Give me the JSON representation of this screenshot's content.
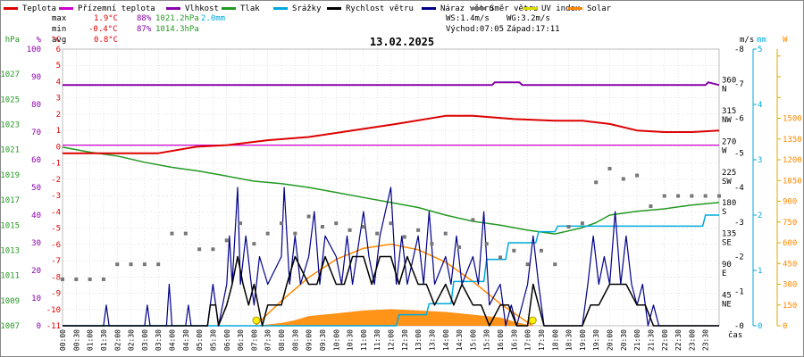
{
  "legend": [
    {
      "label": "Teplota",
      "color": "#dd0000"
    },
    {
      "label": "Přízemní teplota",
      "color": "#cc00cc"
    },
    {
      "label": "Vlhkost",
      "color": "#8800aa"
    },
    {
      "label": "Tlak",
      "color": "#229922"
    },
    {
      "label": "Srážky",
      "color": "#00aadd"
    },
    {
      "label": "Rychlost větru",
      "color": "#000000"
    },
    {
      "label": "Náraz větru",
      "color": "#000088"
    },
    {
      "label": "Směr větru",
      "color": "#777777"
    },
    {
      "label": "UV index",
      "color": "#dddd00"
    },
    {
      "label": "Solar",
      "color": "#ff8800"
    }
  ],
  "stats": {
    "max": {
      "label": "max",
      "temp": "1.9°C",
      "hum": "88%",
      "press": "1021.2hPa",
      "rain": "2.0mm"
    },
    "min": {
      "label": "min",
      "temp": "-0.4°C",
      "hum": "87%",
      "press": "1014.3hPa"
    },
    "avg": {
      "label": "avg",
      "temp": "0.8°C"
    }
  },
  "wind_info": {
    "ws": "WS:1.4m/s",
    "wg": "WG:3.2m/s",
    "sunrise": "Východ:07:05",
    "sunset": "Západ:17:11"
  },
  "title": "13.02.2025",
  "axis_units": {
    "hpa": "hPa",
    "pct": "%",
    "celsius": "°C",
    "ms": "m/s",
    "mm": "mm",
    "w": "W",
    "time": "čas"
  },
  "colors": {
    "hpa": "#229922",
    "pct": "#8800aa",
    "celsius": "#dd0000",
    "ms": "#000000",
    "mm": "#00aadd",
    "w": "#ff8800",
    "grid": "#c8c8c8"
  },
  "chart_data": {
    "type": "line",
    "x_unit": "time of day (hours)",
    "xlim": [
      0,
      24
    ],
    "x_tick_labels": [
      "00:00",
      "00:30",
      "01:00",
      "01:30",
      "02:00",
      "02:30",
      "03:00",
      "03:30",
      "04:00",
      "04:30",
      "05:00",
      "05:30",
      "06:00",
      "06:30",
      "07:00",
      "07:30",
      "08:00",
      "08:30",
      "09:00",
      "09:30",
      "10:00",
      "10:30",
      "11:00",
      "11:30",
      "12:00",
      "12:30",
      "13:00",
      "13:30",
      "14:00",
      "14:30",
      "15:00",
      "15:30",
      "16:00",
      "16:30",
      "17:00",
      "17:30",
      "18:00",
      "18:30",
      "19:00",
      "19:30",
      "20:00",
      "20:30",
      "21:00",
      "21:30",
      "22:00",
      "22:30",
      "23:00",
      "23:30"
    ],
    "axes": {
      "pressure": {
        "unit": "hPa",
        "range": [
          1007,
          1029
        ],
        "ticks": [
          "1007",
          "1009",
          "1011",
          "1013",
          "1015",
          "1017",
          "1019",
          "1021",
          "1023",
          "1025",
          "1027"
        ]
      },
      "humidity": {
        "unit": "%",
        "range": [
          0,
          100
        ],
        "ticks": [
          "0",
          "10",
          "20",
          "30",
          "40",
          "50",
          "60",
          "70",
          "80",
          "90",
          "100"
        ]
      },
      "temperature": {
        "unit": "°C",
        "range": [
          -11,
          6
        ],
        "ticks": [
          "-11",
          "-10",
          "-9",
          "-8",
          "-7",
          "-6",
          "-5",
          "-4",
          "-3",
          "-2",
          "-1",
          "0",
          "1",
          "2",
          "3",
          "4",
          "5",
          "6"
        ]
      },
      "wind_direction": {
        "unit": "°",
        "range": [
          0,
          405
        ],
        "ticks": [
          "0",
          "45",
          "90",
          "135",
          "180",
          "225",
          "270",
          "315",
          "360"
        ],
        "compass": [
          "",
          "NE",
          "E",
          "SE",
          "S",
          "SW",
          "W",
          "NW",
          "N"
        ]
      },
      "wind_speed": {
        "unit": "m/s",
        "range": [
          0,
          8
        ],
        "ticks": [
          "0",
          "1",
          "2",
          "3",
          "4",
          "5",
          "6",
          "7",
          "8"
        ]
      },
      "rain": {
        "unit": "mm",
        "range": [
          0,
          5
        ],
        "ticks": [
          "0",
          "1",
          "2",
          "3",
          "4",
          "5"
        ]
      },
      "solar": {
        "unit": "W",
        "range": [
          0,
          2000
        ],
        "ticks": [
          "0",
          "150",
          "300",
          "450",
          "600",
          "750",
          "900",
          "1050",
          "1200",
          "1350",
          "1500"
        ]
      }
    },
    "series": [
      {
        "name": "Teplota",
        "axis": "temperature",
        "color": "#dd0000",
        "x": [
          0,
          3.5,
          4.9,
          6,
          7.5,
          9,
          11,
          12.2,
          14,
          15,
          16.5,
          18,
          19,
          20,
          21,
          22,
          23,
          24
        ],
        "y": [
          -0.4,
          -0.4,
          0,
          0.1,
          0.4,
          0.6,
          1.1,
          1.4,
          1.9,
          1.9,
          1.7,
          1.6,
          1.6,
          1.4,
          1.0,
          0.9,
          0.9,
          1.0
        ]
      },
      {
        "name": "Přízemní teplota",
        "axis": "temperature",
        "color": "#cc00cc",
        "x": [
          0,
          24
        ],
        "y": [
          0.1,
          0.1
        ]
      },
      {
        "name": "Vlhkost",
        "axis": "humidity",
        "color": "#8800aa",
        "x": [
          0,
          15.7,
          15.8,
          16.7,
          16.8,
          23.5,
          23.6,
          24
        ],
        "y": [
          87,
          87,
          88,
          88,
          87,
          87,
          88,
          87
        ]
      },
      {
        "name": "Tlak",
        "axis": "pressure",
        "color": "#229922",
        "x": [
          0,
          1,
          2,
          3,
          4,
          5,
          6,
          7,
          8,
          9,
          10,
          11,
          12,
          13,
          14,
          15,
          16,
          17,
          18,
          19,
          19.5,
          20,
          21,
          22,
          23,
          24
        ],
        "y": [
          1021.2,
          1020.8,
          1020.5,
          1020,
          1019.6,
          1019.3,
          1018.9,
          1018.5,
          1018.3,
          1018,
          1017.6,
          1017.2,
          1016.8,
          1016.4,
          1015.8,
          1015.3,
          1015,
          1014.6,
          1014.3,
          1014.8,
          1015.2,
          1015.8,
          1016.1,
          1016.3,
          1016.6,
          1016.8
        ]
      },
      {
        "name": "Srážky",
        "axis": "rain",
        "color": "#00aadd",
        "x": [
          0,
          12.2,
          12.3,
          13.3,
          13.4,
          14.2,
          14.3,
          15.4,
          15.5,
          16.2,
          16.3,
          17.3,
          17.4,
          18,
          18.1,
          20,
          20.1,
          23.4,
          23.5,
          24
        ],
        "y": [
          0,
          0,
          0.2,
          0.2,
          0.4,
          0.4,
          0.8,
          0.8,
          1.2,
          1.2,
          1.5,
          1.5,
          1.7,
          1.7,
          1.8,
          1.8,
          1.8,
          1.8,
          2.0,
          2.0
        ]
      },
      {
        "name": "Rychlost větru",
        "axis": "wind_speed",
        "color": "#000000",
        "x": [
          0,
          5.3,
          5.4,
          5.6,
          5.7,
          6,
          6.2,
          6.4,
          6.6,
          6.8,
          7,
          7.3,
          7.5,
          8,
          8.2,
          8.5,
          9,
          9.3,
          9.6,
          10,
          10.3,
          10.6,
          11,
          11.3,
          11.6,
          12,
          12.3,
          12.6,
          13,
          13.3,
          13.6,
          14,
          14.3,
          14.6,
          15,
          15.3,
          15.6,
          16,
          16.3,
          16.6,
          17,
          17.2,
          17.4,
          17.6,
          17.8,
          18,
          18.5,
          19,
          19.3,
          19.6,
          20,
          20.3,
          20.6,
          21,
          21.3,
          21.6,
          22,
          24
        ],
        "y": [
          0,
          0,
          0.6,
          0.6,
          0,
          0.6,
          1.2,
          2.0,
          1.2,
          0.6,
          1.2,
          0,
          0.6,
          0.6,
          1.2,
          2.0,
          1.2,
          1.2,
          2.0,
          1.2,
          1.2,
          2.0,
          2.0,
          1.2,
          2.0,
          2.0,
          1.2,
          2.0,
          1.2,
          1.2,
          0.6,
          1.2,
          0.6,
          1.2,
          0.6,
          0.6,
          0,
          0.6,
          0.6,
          0,
          0,
          1.2,
          0.6,
          0,
          0,
          0,
          0,
          0,
          0.6,
          0.6,
          1.2,
          1.2,
          1.2,
          0.6,
          0.6,
          0,
          0,
          0
        ]
      },
      {
        "name": "Náraz větru",
        "axis": "wind_speed",
        "color": "#000088",
        "x": [
          0,
          1.5,
          1.6,
          1.7,
          2,
          3,
          3.1,
          3.2,
          3.8,
          3.9,
          4,
          4.5,
          4.6,
          4.7,
          5.3,
          5.5,
          5.7,
          6,
          6.1,
          6.2,
          6.4,
          6.5,
          6.7,
          6.9,
          7,
          7.2,
          7.5,
          8,
          8.1,
          8.3,
          8.5,
          8.7,
          9,
          9.2,
          9.4,
          9.6,
          10,
          10.2,
          10.4,
          10.6,
          11,
          11.2,
          11.4,
          11.6,
          12,
          12.2,
          12.4,
          12.6,
          13,
          13.2,
          13.4,
          13.6,
          14,
          14.2,
          14.4,
          14.6,
          15,
          15.2,
          15.4,
          15.6,
          16,
          16.2,
          16.4,
          16.6,
          17,
          17.2,
          17.4,
          17.6,
          17.8,
          18,
          18.5,
          19,
          19.2,
          19.4,
          19.6,
          19.8,
          20,
          20.2,
          20.4,
          20.6,
          20.8,
          21,
          21.2,
          21.4,
          21.6,
          21.8,
          22,
          24
        ],
        "y": [
          0,
          0,
          0.6,
          0,
          0,
          0,
          0.6,
          0,
          0,
          1.2,
          0,
          0,
          0.6,
          0,
          0,
          1.2,
          0,
          1.2,
          2.6,
          1.2,
          4.0,
          1.2,
          2.6,
          1.2,
          0.6,
          2.0,
          1.2,
          2.0,
          4.0,
          1.2,
          2.6,
          1.2,
          2.0,
          3.3,
          1.2,
          2.6,
          2.0,
          1.2,
          2.6,
          1.2,
          3.3,
          2.0,
          1.2,
          2.6,
          4.0,
          1.2,
          2.6,
          1.2,
          2.6,
          1.2,
          3.3,
          1.2,
          2.0,
          1.2,
          2.6,
          1.2,
          2.0,
          1.2,
          3.3,
          0.6,
          1.2,
          0,
          0.6,
          0,
          1.2,
          2.6,
          1.2,
          0,
          0,
          0,
          0,
          0,
          1.2,
          2.6,
          1.2,
          2.0,
          1.2,
          3.3,
          1.2,
          2.6,
          1.2,
          0.6,
          1.2,
          0,
          0.6,
          0,
          0,
          0
        ]
      },
      {
        "name": "Směr větru",
        "axis": "wind_direction",
        "color": "#777777",
        "style": "points",
        "x": [
          0,
          0.5,
          1,
          1.5,
          2,
          2.5,
          3,
          3.5,
          4,
          4.5,
          5,
          5.5,
          6,
          6.5,
          7,
          7.5,
          8,
          8.5,
          9,
          9.5,
          10,
          10.5,
          11,
          11.5,
          12,
          12.5,
          13,
          13.5,
          14,
          14.5,
          15,
          15.5,
          16,
          16.5,
          17,
          17.5,
          18,
          18.5,
          19,
          19.5,
          20,
          20.5,
          21,
          21.5,
          22,
          22.5,
          23,
          23.5,
          24
        ],
        "y": [
          68,
          68,
          68,
          68,
          90,
          90,
          90,
          90,
          135,
          135,
          112,
          112,
          125,
          150,
          120,
          135,
          150,
          135,
          160,
          145,
          150,
          140,
          145,
          135,
          150,
          130,
          140,
          120,
          135,
          115,
          155,
          120,
          100,
          110,
          90,
          110,
          90,
          145,
          150,
          210,
          230,
          215,
          220,
          175,
          190,
          190,
          190,
          190,
          190
        ]
      },
      {
        "name": "Solar",
        "axis": "solar",
        "color": "#ff8800",
        "style": "area",
        "x": [
          7.05,
          8,
          8.5,
          9,
          10,
          11,
          12,
          13,
          14,
          15,
          16,
          16.5,
          17.18
        ],
        "y": [
          0,
          20,
          40,
          70,
          90,
          110,
          120,
          110,
          100,
          80,
          60,
          30,
          0
        ]
      },
      {
        "name": "Solar (theoretical)",
        "axis": "solar",
        "color": "#ff8800",
        "style": "line",
        "x": [
          7.05,
          8,
          9,
          10,
          11,
          12,
          13,
          14,
          15,
          16,
          17.18
        ],
        "y": [
          0,
          180,
          350,
          480,
          560,
          590,
          550,
          460,
          320,
          160,
          0
        ]
      }
    ]
  }
}
